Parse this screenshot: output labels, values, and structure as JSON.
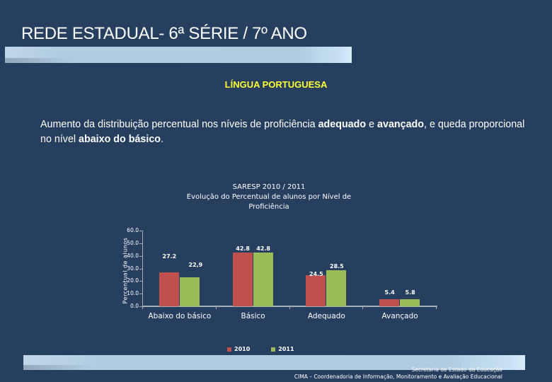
{
  "slide": {
    "title": "REDE ESTADUAL- 6ª SÉRIE / 7º ANO",
    "subject": "LÍNGUA PORTUGUESA",
    "description": {
      "part1": "Aumento da distribuição percentual nos níveis de proficiência ",
      "bold1": "adequado",
      "part2": " e ",
      "bold2": "avançado",
      "part3": ", e queda proporcional no nível ",
      "bold3": "abaixo do básico",
      "part4": "."
    },
    "footer": {
      "line1": "Secretaria de Estado da Educação",
      "line2": "CIMA – Coordenadoria de Informação, Monitoramento e Avaliação Educacional"
    }
  },
  "colors": {
    "background": "#263F5F",
    "series_2010": "#C0504D",
    "series_2011": "#9BBB59",
    "subject": "#FFFF33"
  },
  "chart_data": {
    "type": "bar",
    "title_line1": "SARESP 2010 / 2011",
    "title_line2": "Evolução do Percentual de alunos por  Nível de",
    "title_line3": "Proficiência",
    "xlabel": "",
    "ylabel": "Percentual de alunos",
    "ylim": [
      0,
      60
    ],
    "yticks": [
      "0.0",
      "10.0",
      "20.0",
      "30.0",
      "40.0",
      "50.0",
      "60.0"
    ],
    "categories": [
      "Abaixo do básico",
      "Básico",
      "Adequado",
      "Avançado"
    ],
    "series": [
      {
        "name": "2010",
        "values": [
          27.2,
          42.8,
          24.5,
          5.4
        ],
        "labels": [
          "27.2",
          "42.8",
          "24.5",
          "5.4"
        ]
      },
      {
        "name": "2011",
        "values": [
          22.9,
          42.8,
          28.5,
          5.8
        ],
        "labels": [
          "22,9",
          "42.8",
          "28.5",
          "5.8"
        ]
      }
    ],
    "legend_position": "bottom",
    "grid": false
  }
}
